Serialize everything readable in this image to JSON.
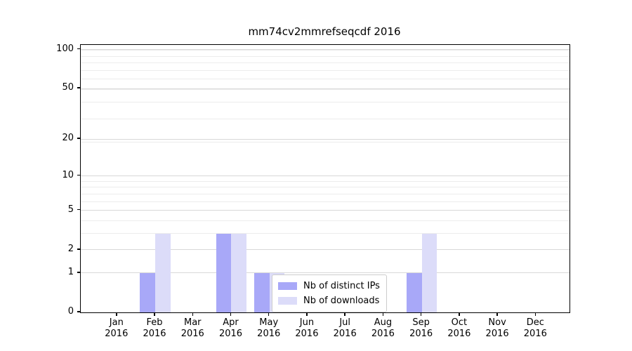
{
  "chart_data": {
    "type": "bar",
    "title": "mm74cv2mmrefseqcdf 2016",
    "categories": [
      "Jan",
      "Feb",
      "Mar",
      "Apr",
      "May",
      "Jun",
      "Jul",
      "Aug",
      "Sep",
      "Oct",
      "Nov",
      "Dec"
    ],
    "x_tick_year": "2016",
    "series": [
      {
        "name": "Nb of distinct IPs",
        "color": "#a8a8f8",
        "values": [
          0,
          1,
          0,
          3,
          1,
          0,
          0,
          0,
          1,
          0,
          0,
          0
        ]
      },
      {
        "name": "Nb of downloads",
        "color": "#dcdcf9",
        "values": [
          0,
          3,
          0,
          3,
          1,
          0,
          0,
          0,
          3,
          0,
          0,
          0
        ]
      }
    ],
    "xlabel": "",
    "ylabel": "",
    "y_scale": "log1p",
    "ylim": [
      0,
      108.7
    ],
    "y_ticks": [
      0,
      1,
      2,
      5,
      10,
      20,
      50,
      100
    ],
    "y_minor_gridline_values": [
      3,
      4,
      6,
      7,
      8,
      9,
      19,
      29,
      39,
      49,
      59,
      69,
      79,
      89,
      99
    ],
    "grid": "horizontal major and minor, light gray",
    "legend": {
      "position": "inside plot, lower middle-right",
      "labels": [
        "Nb of distinct IPs",
        "Nb of downloads"
      ]
    },
    "colors": {
      "major_grid": "#d8d8d8",
      "minor_grid": "#ececec",
      "spine": "#000000",
      "background": "#ffffff"
    }
  }
}
